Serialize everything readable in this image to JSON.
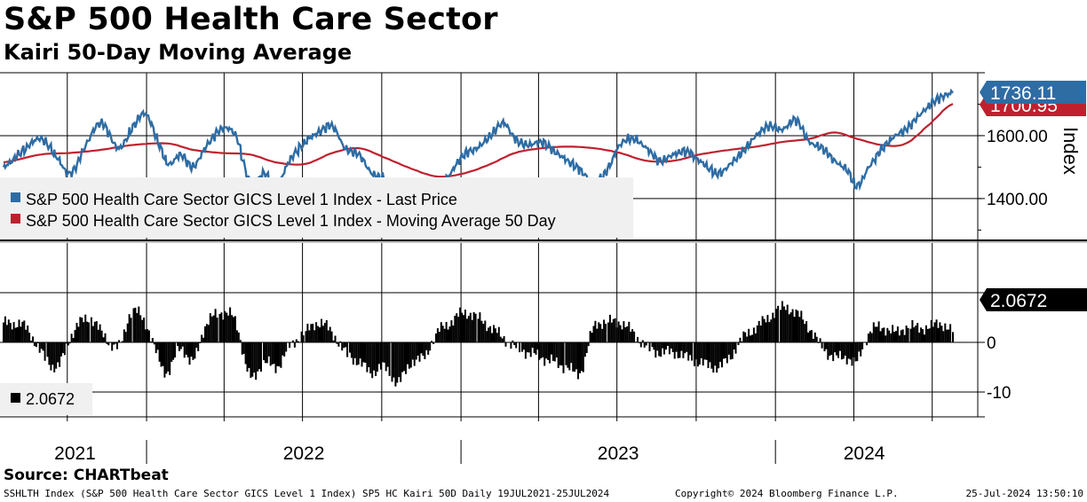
{
  "header": {
    "title": "S&P 500 Health Care Sector",
    "subtitle": "Kairi 50-Day Moving Average"
  },
  "footer": {
    "source": "Source: CHARTbeat",
    "left": "SSHLTH Index (S&P 500 Health Care Sector GICS Level 1 Index) SP5 HC Kairi 50D  Daily 19JUL2021-25JUL2024",
    "center": "Copyright© 2024 Bloomberg Finance L.P.",
    "right": "25-Jul-2024 13:50:10"
  },
  "colors": {
    "price": "#2e6ca4",
    "ma": "#c0202e",
    "kairi": "#000000",
    "grid": "#000000"
  },
  "chart_data": [
    {
      "type": "line",
      "panel": "price",
      "ylabel": "Index",
      "ylim": [
        1270,
        1800
      ],
      "yticks": [
        1400,
        1600
      ],
      "ytick_labels": [
        "1400.00",
        "1600.00"
      ],
      "x_range": [
        "2021-07-19",
        "2024-07-25"
      ],
      "x_labels": [
        "2021",
        "2022",
        "2023",
        "2024"
      ],
      "legend": [
        {
          "label": "S&P 500 Health Care Sector GICS Level 1 Index - Last Price",
          "color": "#2e6ca4"
        },
        {
          "label": "S&P 500 Health Care Sector GICS Level 1 Index - Moving Average 50 Day",
          "color": "#c0202e"
        }
      ],
      "last_labels": [
        {
          "value": "1736.11",
          "color": "#2e6ca4"
        },
        {
          "value": "1700.95",
          "color": "#c0202e"
        }
      ],
      "series": [
        {
          "name": "S&P 500 Health Care Sector GICS Level 1 Index - Last Price",
          "x": [
            "2021-07-19",
            "2021-08-15",
            "2021-09-01",
            "2021-09-20",
            "2021-10-05",
            "2021-10-25",
            "2021-11-10",
            "2021-11-30",
            "2021-12-15",
            "2021-12-31",
            "2022-01-15",
            "2022-01-27",
            "2022-02-10",
            "2022-02-24",
            "2022-03-10",
            "2022-03-29",
            "2022-04-15",
            "2022-05-02",
            "2022-05-18",
            "2022-06-01",
            "2022-06-16",
            "2022-07-05",
            "2022-07-20",
            "2022-08-05",
            "2022-08-20",
            "2022-09-05",
            "2022-09-20",
            "2022-10-05",
            "2022-10-20",
            "2022-11-05",
            "2022-11-20",
            "2022-12-05",
            "2022-12-20",
            "2023-01-05",
            "2023-01-20",
            "2023-02-05",
            "2023-02-20",
            "2023-03-05",
            "2023-03-20",
            "2023-04-05",
            "2023-04-20",
            "2023-05-05",
            "2023-05-20",
            "2023-06-05",
            "2023-06-20",
            "2023-07-05",
            "2023-07-20",
            "2023-08-05",
            "2023-08-20",
            "2023-09-05",
            "2023-09-20",
            "2023-10-05",
            "2023-10-27",
            "2023-11-10",
            "2023-11-25",
            "2023-12-10",
            "2023-12-25",
            "2024-01-10",
            "2024-01-25",
            "2024-02-10",
            "2024-02-25",
            "2024-03-10",
            "2024-03-25",
            "2024-04-05",
            "2024-04-19",
            "2024-05-05",
            "2024-05-20",
            "2024-06-01",
            "2024-06-15",
            "2024-06-30",
            "2024-07-10",
            "2024-07-25"
          ],
          "values": [
            1500,
            1560,
            1590,
            1530,
            1480,
            1580,
            1640,
            1560,
            1620,
            1670,
            1580,
            1510,
            1540,
            1500,
            1560,
            1620,
            1600,
            1450,
            1480,
            1440,
            1520,
            1580,
            1610,
            1630,
            1560,
            1540,
            1480,
            1460,
            1400,
            1450,
            1420,
            1430,
            1480,
            1540,
            1560,
            1600,
            1640,
            1590,
            1570,
            1580,
            1550,
            1520,
            1490,
            1450,
            1490,
            1570,
            1590,
            1560,
            1520,
            1540,
            1550,
            1520,
            1480,
            1510,
            1550,
            1600,
            1630,
            1620,
            1650,
            1580,
            1560,
            1520,
            1490,
            1440,
            1500,
            1560,
            1600,
            1620,
            1660,
            1700,
            1720,
            1736.11
          ]
        },
        {
          "name": "S&P 500 Health Care Sector GICS Level 1 Index - Moving Average 50 Day",
          "x": [
            "2021-07-19",
            "2021-09-01",
            "2021-10-05",
            "2021-11-10",
            "2021-12-15",
            "2022-01-27",
            "2022-02-24",
            "2022-03-29",
            "2022-05-02",
            "2022-06-01",
            "2022-07-05",
            "2022-08-05",
            "2022-09-05",
            "2022-10-05",
            "2022-11-05",
            "2022-12-05",
            "2023-01-05",
            "2023-02-05",
            "2023-03-05",
            "2023-04-05",
            "2023-05-05",
            "2023-06-05",
            "2023-07-05",
            "2023-08-05",
            "2023-09-05",
            "2023-10-05",
            "2023-11-10",
            "2023-12-10",
            "2024-01-10",
            "2024-02-10",
            "2024-03-10",
            "2024-04-05",
            "2024-05-05",
            "2024-06-01",
            "2024-06-30",
            "2024-07-25"
          ],
          "values": [
            1515,
            1540,
            1545,
            1555,
            1570,
            1575,
            1555,
            1545,
            1540,
            1515,
            1510,
            1545,
            1560,
            1530,
            1495,
            1470,
            1480,
            1510,
            1545,
            1560,
            1565,
            1560,
            1545,
            1520,
            1520,
            1540,
            1555,
            1565,
            1580,
            1590,
            1610,
            1590,
            1570,
            1575,
            1640,
            1700.95
          ]
        }
      ]
    },
    {
      "type": "bar",
      "panel": "kairi",
      "ylim": [
        -15,
        20
      ],
      "yticks": [
        0,
        -10
      ],
      "ytick_labels": [
        "0",
        "-10"
      ],
      "legend": [
        {
          "label": "2.0672",
          "color": "#000000"
        }
      ],
      "last_label": {
        "value": "2.0672",
        "color": "#000000"
      },
      "series": [
        {
          "name": "2.0672",
          "x": [
            "2021-07-19",
            "2021-08-15",
            "2021-09-01",
            "2021-09-20",
            "2021-10-05",
            "2021-10-25",
            "2021-11-10",
            "2021-11-30",
            "2021-12-15",
            "2021-12-31",
            "2022-01-15",
            "2022-01-27",
            "2022-02-10",
            "2022-02-24",
            "2022-03-10",
            "2022-03-29",
            "2022-04-15",
            "2022-05-02",
            "2022-05-18",
            "2022-06-01",
            "2022-06-16",
            "2022-07-05",
            "2022-07-20",
            "2022-08-05",
            "2022-08-20",
            "2022-09-05",
            "2022-09-20",
            "2022-10-05",
            "2022-10-20",
            "2022-11-05",
            "2022-11-20",
            "2022-12-05",
            "2022-12-20",
            "2023-01-05",
            "2023-01-20",
            "2023-02-05",
            "2023-02-20",
            "2023-03-05",
            "2023-03-20",
            "2023-04-05",
            "2023-04-20",
            "2023-05-05",
            "2023-05-20",
            "2023-06-05",
            "2023-06-20",
            "2023-07-05",
            "2023-07-20",
            "2023-08-05",
            "2023-08-20",
            "2023-09-05",
            "2023-09-20",
            "2023-10-05",
            "2023-10-27",
            "2023-11-10",
            "2023-11-25",
            "2023-12-10",
            "2023-12-25",
            "2024-01-10",
            "2024-01-25",
            "2024-02-10",
            "2024-02-25",
            "2024-03-10",
            "2024-03-25",
            "2024-04-05",
            "2024-04-19",
            "2024-05-05",
            "2024-05-20",
            "2024-06-01",
            "2024-06-15",
            "2024-06-30",
            "2024-07-10",
            "2024-07-25"
          ],
          "values": [
            4,
            3,
            -2,
            -5,
            1,
            5,
            2,
            -1,
            6,
            4,
            -3,
            -6,
            -1,
            -4,
            3,
            6,
            4,
            -7,
            -4,
            -5,
            -1,
            2,
            4,
            2,
            -2,
            -4,
            -6,
            -5,
            -8,
            -4,
            -3,
            2,
            4,
            6,
            5,
            3,
            1,
            -1,
            -2,
            -3,
            -4,
            -5,
            -6,
            3,
            4,
            4,
            2,
            -1,
            -2,
            -2,
            -3,
            -4,
            -5,
            -3,
            1,
            3,
            5,
            7,
            6,
            3,
            -1,
            -3,
            -3,
            -4,
            2,
            3,
            2,
            3,
            3,
            3,
            4,
            2.0672
          ]
        }
      ]
    }
  ]
}
